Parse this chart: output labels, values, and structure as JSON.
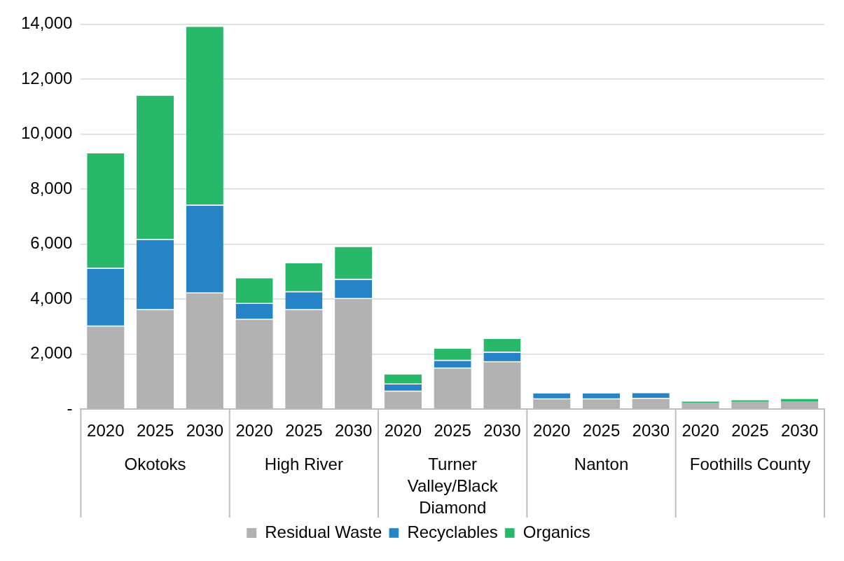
{
  "chart_data": {
    "type": "bar",
    "stacked": true,
    "categories": [
      "2020",
      "2025",
      "2030",
      "2020",
      "2025",
      "2030",
      "2020",
      "2025",
      "2030",
      "2020",
      "2025",
      "2030",
      "2020",
      "2025",
      "2030"
    ],
    "annotations": [
      "Okotoks",
      "High River",
      "Turner Valley/Black Diamond",
      "Nanton",
      "Foothills County"
    ],
    "series": [
      {
        "name": "Residual Waste",
        "color": "#b2b2b2",
        "values": [
          3000,
          3600,
          4200,
          3250,
          3600,
          4000,
          630,
          1470,
          1700,
          350,
          350,
          370,
          230,
          260,
          280
        ]
      },
      {
        "name": "Recyclables",
        "color": "#2683c6",
        "values": [
          2100,
          2550,
          3200,
          570,
          650,
          700,
          260,
          280,
          350,
          220,
          220,
          210,
          null,
          null,
          null
        ]
      },
      {
        "name": "Organics",
        "color": "#27b969",
        "values": [
          4200,
          5250,
          6500,
          940,
          1050,
          1200,
          370,
          450,
          500,
          null,
          null,
          null,
          40,
          60,
          80
        ]
      }
    ],
    "ylim": [
      0,
      14000
    ],
    "yticks": [
      {
        "value": 0,
        "label": "-"
      },
      {
        "value": 2000,
        "label": "2,000"
      },
      {
        "value": 4000,
        "label": "4,000"
      },
      {
        "value": 6000,
        "label": "6,000"
      },
      {
        "value": 8000,
        "label": "8,000"
      },
      {
        "value": 10000,
        "label": "10,000"
      },
      {
        "value": 12000,
        "label": "12,000"
      },
      {
        "value": 14000,
        "label": "14,000"
      }
    ],
    "grid": "y",
    "legend": "bottom"
  }
}
